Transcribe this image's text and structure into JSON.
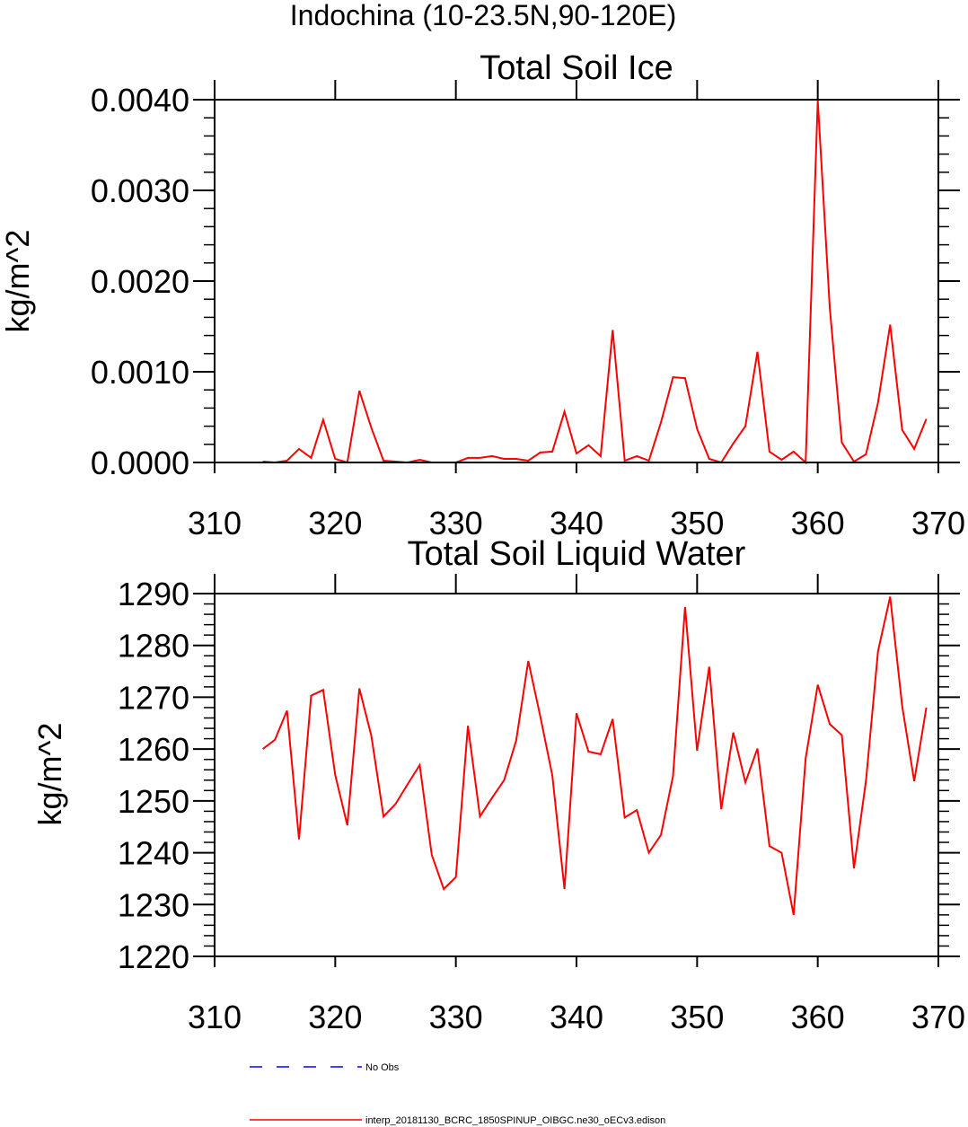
{
  "title": "Indochina (10-23.5N,90-120E)",
  "legend": {
    "items": [
      {
        "label": "No Obs",
        "color": "#0000ff",
        "dash": "dashed"
      },
      {
        "label": "interp_20181130_BCRC_1850SPINUP_OIBGC.ne30_oECv3.edison",
        "color": "#ff0000",
        "dash": "solid"
      }
    ]
  },
  "chart_data": [
    {
      "type": "line",
      "title": "Total Soil Ice",
      "xlabel": "",
      "ylabel": "kg/m^2",
      "xlim": [
        310,
        370
      ],
      "ylim": [
        0,
        0.004
      ],
      "xticks": [
        310,
        320,
        330,
        340,
        350,
        360,
        370
      ],
      "xtick_labels": [
        "310",
        "320",
        "330",
        "340",
        "350",
        "360",
        "370"
      ],
      "yticks": [
        0,
        0.001,
        0.002,
        0.003,
        0.004
      ],
      "ytick_labels": [
        "0.0000",
        "0.0010",
        "0.0020",
        "0.0030",
        "0.0040"
      ],
      "grid": false,
      "series": [
        {
          "name": "interp_20181130_BCRC_1850SPINUP_OIBGC.ne30_oECv3.edison",
          "color": "#ff0000",
          "x": [
            314,
            315,
            316,
            317,
            318,
            319,
            320,
            321,
            322,
            323,
            324,
            325,
            326,
            327,
            328,
            329,
            330,
            331,
            332,
            333,
            334,
            335,
            336,
            337,
            338,
            339,
            340,
            341,
            342,
            343,
            344,
            345,
            346,
            347,
            348,
            349,
            350,
            351,
            352,
            353,
            354,
            355,
            356,
            357,
            358,
            359,
            360,
            361,
            362,
            363,
            364,
            365,
            366,
            367,
            368,
            369
          ],
          "values": [
            1e-05,
            0,
            2e-05,
            0.00015,
            5e-05,
            0.00047,
            4e-05,
            0,
            0.00079,
            0.00038,
            2e-05,
            1e-05,
            0,
            3e-05,
            0,
            0,
            0,
            5e-05,
            5e-05,
            7e-05,
            4e-05,
            4e-05,
            2e-05,
            0.00011,
            0.00012,
            0.00056,
            0.0001,
            0.00019,
            7e-05,
            0.00146,
            2e-05,
            7e-05,
            2e-05,
            0.00044,
            0.00094,
            0.00093,
            0.00037,
            4e-05,
            0,
            0.00021,
            0.0004,
            0.00122,
            0.00012,
            3e-05,
            0.00012,
            0,
            0.00399,
            0.0017,
            0.00022,
            1e-05,
            9e-05,
            0.00066,
            0.00152,
            0.00036,
            0.00015,
            0.00048
          ]
        }
      ]
    },
    {
      "type": "line",
      "title": "Total Soil Liquid Water",
      "xlabel": "",
      "ylabel": "kg/m^2",
      "xlim": [
        310,
        370
      ],
      "ylim": [
        1220,
        1290
      ],
      "xticks": [
        310,
        320,
        330,
        340,
        350,
        360,
        370
      ],
      "xtick_labels": [
        "310",
        "320",
        "330",
        "340",
        "350",
        "360",
        "370"
      ],
      "yticks": [
        1220,
        1230,
        1240,
        1250,
        1260,
        1270,
        1280,
        1290
      ],
      "ytick_labels": [
        "1220",
        "1230",
        "1240",
        "1250",
        "1260",
        "1270",
        "1280",
        "1290"
      ],
      "grid": false,
      "series": [
        {
          "name": "interp_20181130_BCRC_1850SPINUP_OIBGC.ne30_oECv3.edison",
          "color": "#ff0000",
          "x": [
            314,
            315,
            316,
            317,
            318,
            319,
            320,
            321,
            322,
            323,
            324,
            325,
            326,
            327,
            328,
            329,
            330,
            331,
            332,
            333,
            334,
            335,
            336,
            337,
            338,
            339,
            340,
            341,
            342,
            343,
            344,
            345,
            346,
            347,
            348,
            349,
            350,
            351,
            352,
            353,
            354,
            355,
            356,
            357,
            358,
            359,
            360,
            361,
            362,
            363,
            364,
            365,
            366,
            367,
            368,
            369
          ],
          "values": [
            1260,
            1261.8,
            1267.4,
            1242.6,
            1270.3,
            1271.4,
            1255,
            1245.3,
            1271.7,
            1262.5,
            1247,
            1249.4,
            1253.2,
            1256.9,
            1239.6,
            1233,
            1235.3,
            1264.5,
            1247,
            1250.6,
            1254,
            1261.6,
            1277,
            1266.3,
            1254.9,
            1233,
            1266.9,
            1259.5,
            1259,
            1265.8,
            1246.8,
            1248.2,
            1240,
            1243.4,
            1254.8,
            1287.4,
            1259.7,
            1275.9,
            1248.4,
            1263.2,
            1253.6,
            1260.1,
            1241.3,
            1240,
            1228,
            1258.2,
            1272.4,
            1264.8,
            1262.7,
            1237,
            1253.9,
            1278.9,
            1289.4,
            1268.3,
            1253.8,
            1268
          ]
        }
      ]
    }
  ]
}
